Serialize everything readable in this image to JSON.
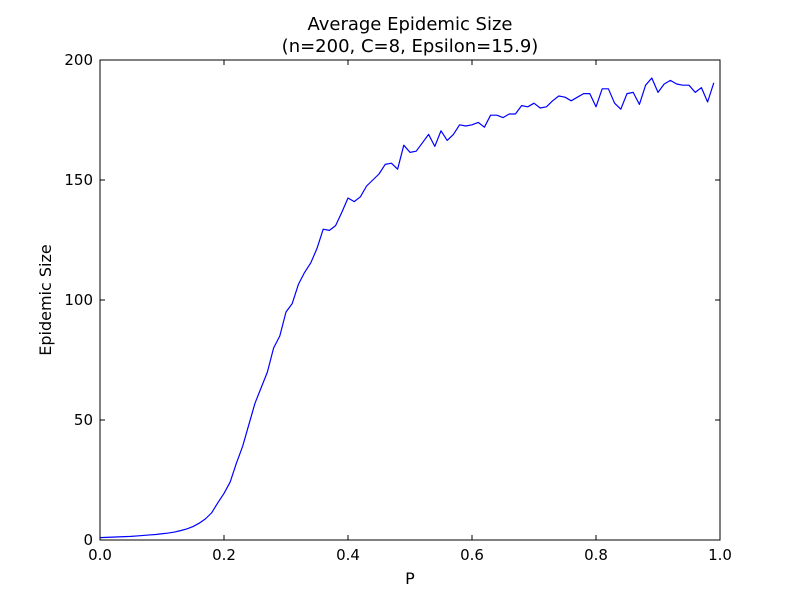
{
  "chart_data": {
    "type": "line",
    "title_line1": "Average Epidemic Size",
    "title_line2": "(n=200, C=8, Epsilon=15.9)",
    "xlabel": "P",
    "ylabel": "Epidemic Size",
    "xlim": [
      0.0,
      1.0
    ],
    "ylim": [
      0,
      200
    ],
    "xticks": [
      0.0,
      0.2,
      0.4,
      0.6,
      0.8,
      1.0
    ],
    "xtick_labels": [
      "0.0",
      "0.2",
      "0.4",
      "0.6",
      "0.8",
      "1.0"
    ],
    "yticks": [
      0,
      50,
      100,
      150,
      200
    ],
    "ytick_labels": [
      "0",
      "50",
      "100",
      "150",
      "200"
    ],
    "grid": false,
    "line_color": "#0000ff",
    "series": [
      {
        "x": [
          0.0,
          0.01,
          0.02,
          0.03,
          0.04,
          0.05,
          0.06,
          0.07,
          0.08,
          0.09,
          0.1,
          0.11,
          0.12,
          0.13,
          0.14,
          0.15,
          0.16,
          0.17,
          0.18,
          0.19,
          0.2,
          0.21,
          0.22,
          0.23,
          0.24,
          0.25,
          0.26,
          0.27,
          0.28,
          0.29,
          0.3,
          0.31,
          0.32,
          0.33,
          0.34,
          0.35,
          0.36,
          0.37,
          0.38,
          0.39,
          0.4,
          0.41,
          0.42,
          0.43,
          0.44,
          0.45,
          0.46,
          0.47,
          0.48,
          0.49,
          0.5,
          0.51,
          0.52,
          0.53,
          0.54,
          0.55,
          0.56,
          0.57,
          0.58,
          0.59,
          0.6,
          0.61,
          0.62,
          0.63,
          0.64,
          0.65,
          0.66,
          0.67,
          0.68,
          0.69,
          0.7,
          0.71,
          0.72,
          0.73,
          0.74,
          0.75,
          0.76,
          0.77,
          0.78,
          0.79,
          0.8,
          0.81,
          0.82,
          0.83,
          0.84,
          0.85,
          0.86,
          0.87,
          0.88,
          0.89,
          0.9,
          0.91,
          0.92,
          0.93,
          0.94,
          0.95,
          0.96,
          0.97,
          0.98,
          0.99
        ],
        "y": [
          1.0,
          1.1,
          1.2,
          1.3,
          1.4,
          1.5,
          1.7,
          1.9,
          2.1,
          2.3,
          2.6,
          2.9,
          3.3,
          3.9,
          4.6,
          5.6,
          7.0,
          8.8,
          11.3,
          15.5,
          19.4,
          24.2,
          32.0,
          39.0,
          48.0,
          57.0,
          63.5,
          70.0,
          80.0,
          85.0,
          95.0,
          98.5,
          106.5,
          111.5,
          115.5,
          121.5,
          129.5,
          129.0,
          131.0,
          136.5,
          142.5,
          141.0,
          143.0,
          147.5,
          150.0,
          152.5,
          156.5,
          157.0,
          154.5,
          164.5,
          161.5,
          162.0,
          165.5,
          169.0,
          164.0,
          170.5,
          166.5,
          169.0,
          173.0,
          172.5,
          173.0,
          174.0,
          172.0,
          177.0,
          177.0,
          176.0,
          177.5,
          177.5,
          181.0,
          180.5,
          182.0,
          180.0,
          180.5,
          183.0,
          185.0,
          184.5,
          183.0,
          184.5,
          186.0,
          186.0,
          180.5,
          188.0,
          188.0,
          182.0,
          179.5,
          186.0,
          186.5,
          181.5,
          189.5,
          192.5,
          186.5,
          190.0,
          191.5,
          190.0,
          189.5,
          189.5,
          186.5,
          188.5,
          182.5,
          190.5
        ]
      }
    ]
  }
}
